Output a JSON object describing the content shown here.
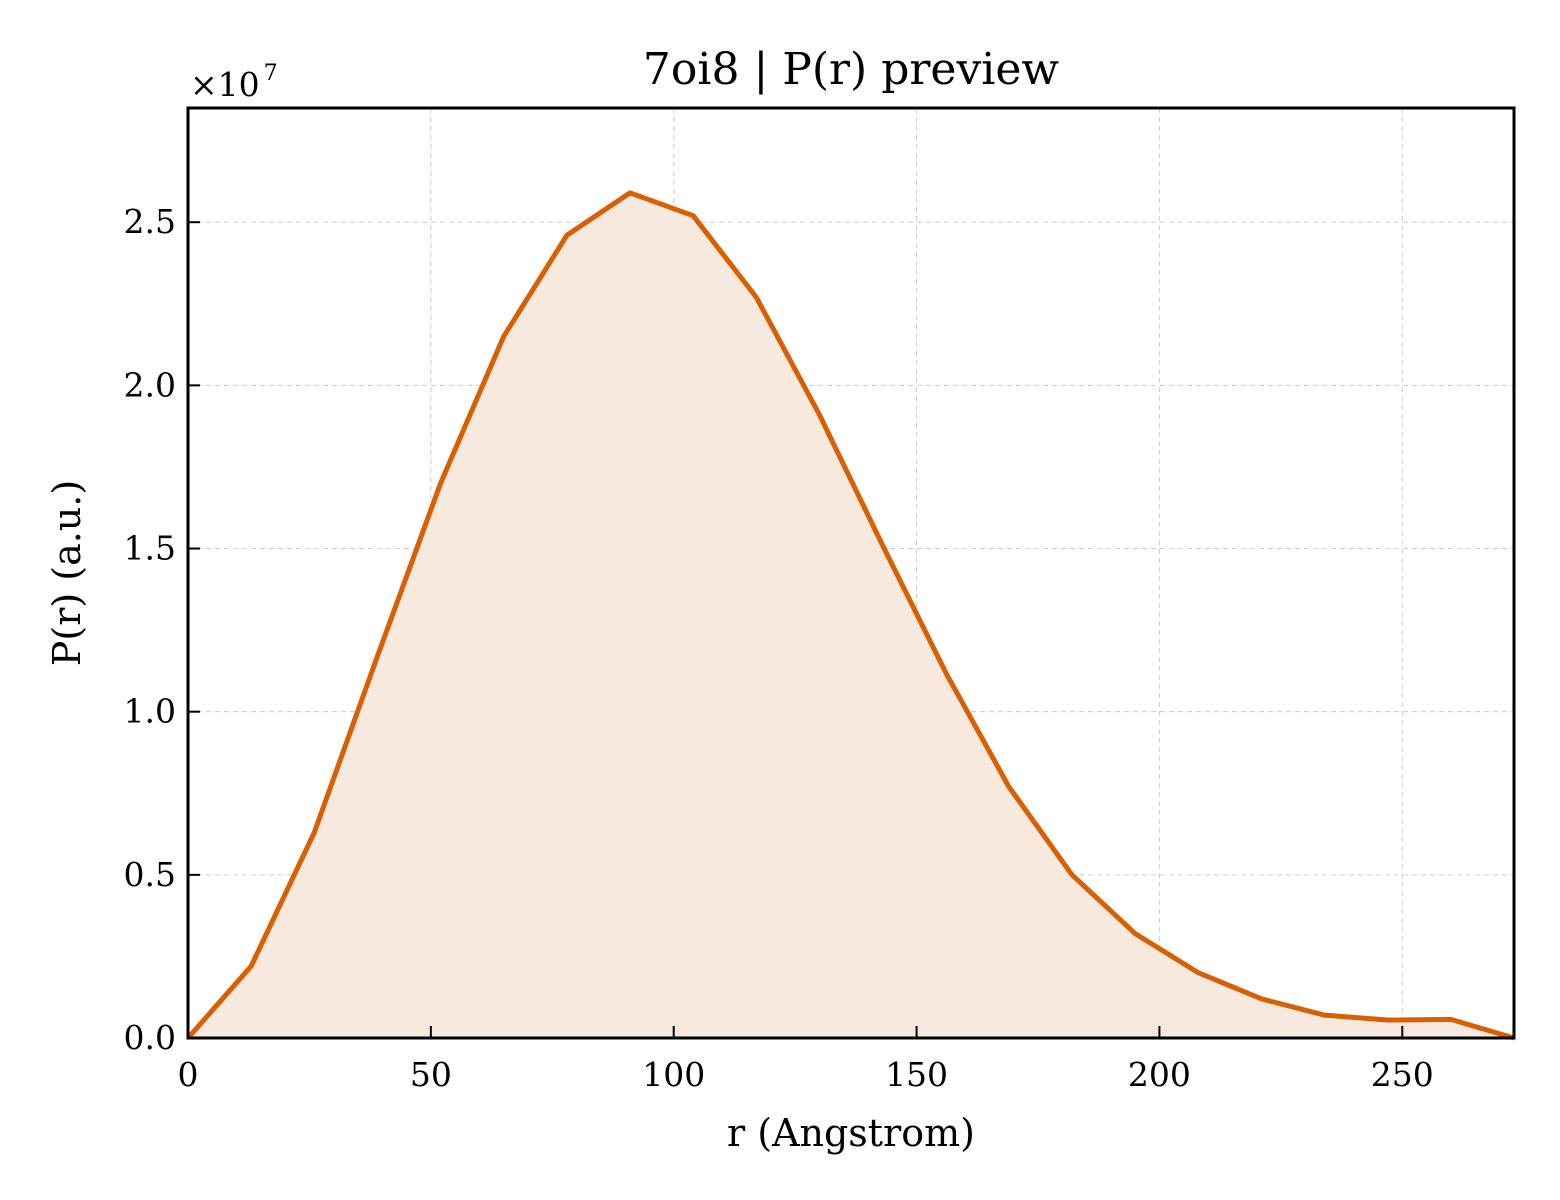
{
  "chart_data": {
    "type": "area",
    "title": "7oi8 | P(r) preview",
    "xlabel": "r (Angstrom)",
    "ylabel": "P(r) (a.u.)",
    "y_multiplier": {
      "base": "×10",
      "exponent": "7"
    },
    "xlim": [
      0,
      273
    ],
    "ylim": [
      0,
      2.85
    ],
    "x_ticks": [
      0,
      50,
      100,
      150,
      200,
      250
    ],
    "x_tick_labels": [
      "0",
      "50",
      "100",
      "150",
      "200",
      "250"
    ],
    "y_ticks": [
      0,
      0.5,
      1.0,
      1.5,
      2.0,
      2.5
    ],
    "y_tick_labels": [
      "0.0",
      "0.5",
      "1.0",
      "1.5",
      "2.0",
      "2.5"
    ],
    "grid": true,
    "tick_direction": "in",
    "line_color": "#d95f02",
    "fill_color": "#f8e9df",
    "series": [
      {
        "x": [
          0,
          13,
          26,
          39,
          52,
          65,
          78,
          91,
          104,
          117,
          130,
          143,
          156,
          169,
          182,
          195,
          208,
          221,
          234,
          247,
          260,
          273
        ],
        "y": [
          0.0,
          0.22,
          0.63,
          1.17,
          1.7,
          2.15,
          2.46,
          2.59,
          2.52,
          2.27,
          1.91,
          1.51,
          1.12,
          0.77,
          0.5,
          0.32,
          0.2,
          0.12,
          0.07,
          0.055,
          0.057,
          0.0
        ]
      }
    ]
  }
}
